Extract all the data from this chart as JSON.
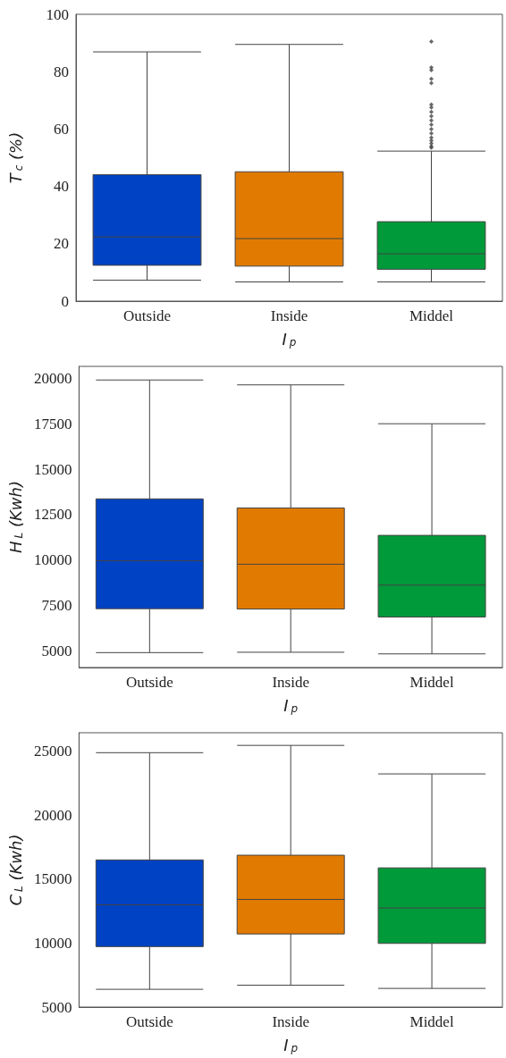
{
  "chart_data": [
    {
      "type": "box",
      "categories": [
        "Outside",
        "Inside",
        "Middel"
      ],
      "xlabel": "I$_{p}$",
      "ylabel": "T$_{c}$ (%)",
      "colors": [
        "#0042c4",
        "#e17a00",
        "#009a3a"
      ],
      "ylim": [
        0,
        100
      ],
      "yticks": [
        0,
        20,
        40,
        60,
        80,
        100
      ],
      "boxes": [
        {
          "low": 7.3,
          "q1": 12.5,
          "median": 22.4,
          "q3": 44.1,
          "high": 86.9
        },
        {
          "low": 6.7,
          "q1": 12.2,
          "median": 21.8,
          "q3": 45.1,
          "high": 89.5
        },
        {
          "low": 6.7,
          "q1": 11.1,
          "median": 16.5,
          "q3": 27.7,
          "high": 52.3,
          "outliers": [
            90.5,
            81.5,
            80.5,
            77.5,
            76,
            68.5,
            67.5,
            66,
            64.5,
            63,
            61.5,
            60,
            58.5,
            57,
            56,
            55,
            54,
            53.5
          ]
        }
      ]
    },
    {
      "type": "box",
      "categories": [
        "Outside",
        "Inside",
        "Middel"
      ],
      "xlabel": "I$_{p}$",
      "ylabel": "H$_{L}$ (Kwh)",
      "colors": [
        "#0042c4",
        "#e17a00",
        "#009a3a"
      ],
      "ylim": [
        4080,
        20670
      ],
      "yticks": [
        5000,
        7500,
        10000,
        12500,
        15000,
        17500,
        20000
      ],
      "boxes": [
        {
          "low": 4900,
          "q1": 7320,
          "median": 9960,
          "q3": 13370,
          "high": 19920
        },
        {
          "low": 4920,
          "q1": 7300,
          "median": 9770,
          "q3": 12870,
          "high": 19650
        },
        {
          "low": 4830,
          "q1": 6860,
          "median": 8620,
          "q3": 11360,
          "high": 17510
        }
      ]
    },
    {
      "type": "box",
      "categories": [
        "Outside",
        "Inside",
        "Middel"
      ],
      "xlabel": "I$_{p}$",
      "ylabel": "C$_{L}$ (Kwh)",
      "colors": [
        "#0042c4",
        "#e17a00",
        "#009a3a"
      ],
      "ylim": [
        5000,
        26460
      ],
      "yticks": [
        5000,
        10000,
        15000,
        20000,
        25000
      ],
      "boxes": [
        {
          "low": 6390,
          "q1": 9730,
          "median": 13000,
          "q3": 16510,
          "high": 24900
        },
        {
          "low": 6710,
          "q1": 10720,
          "median": 13420,
          "q3": 16880,
          "high": 25470
        },
        {
          "low": 6460,
          "q1": 9980,
          "median": 12750,
          "q3": 15890,
          "high": 23240
        }
      ]
    }
  ]
}
